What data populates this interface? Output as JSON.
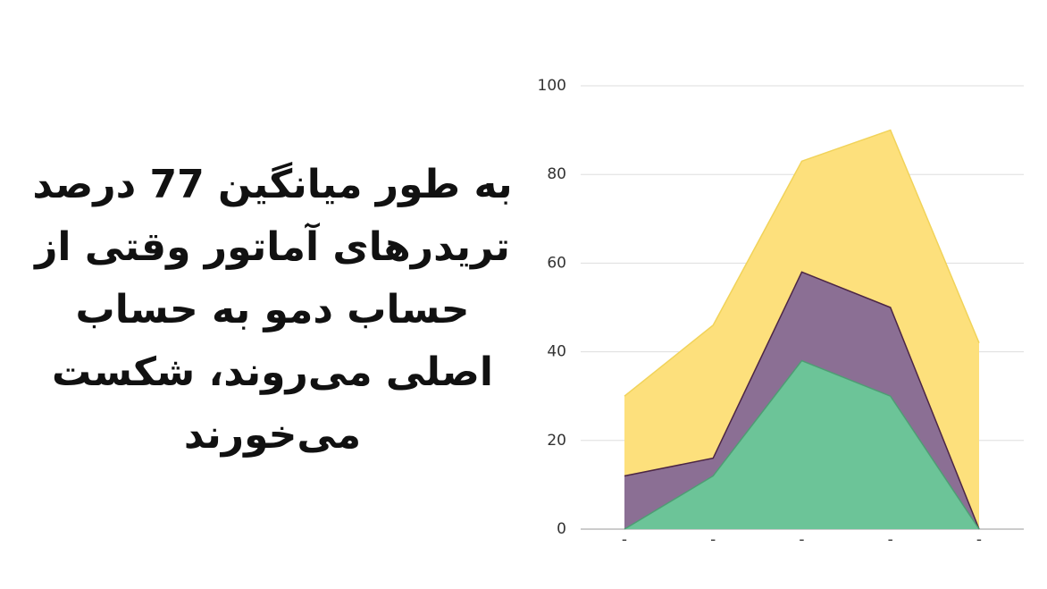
{
  "text": {
    "lines": [
      "به طور میانگین 77 درصد",
      "تریدرهای آماتور وقتی از",
      "حساب دمو به حساب",
      "اصلی می‌روند، شکست",
      "می‌خورند"
    ]
  },
  "chart_data": {
    "type": "area",
    "categories": [
      "-",
      "-",
      "-",
      "-",
      "-"
    ],
    "series": [
      {
        "color": "#fde07c",
        "stroke": "#f1d35a",
        "values": [
          30,
          46,
          83,
          90,
          42
        ]
      },
      {
        "color": "#8b6f94",
        "stroke": "#4b2545",
        "values": [
          12,
          16,
          58,
          50,
          0
        ]
      },
      {
        "color": "#6cc498",
        "stroke": "#4e9d74",
        "values": [
          0,
          12,
          38,
          30,
          0
        ]
      }
    ],
    "ylim": [
      0,
      100
    ],
    "yticks": [
      0,
      20,
      40,
      60,
      80,
      100
    ],
    "grid": true
  }
}
